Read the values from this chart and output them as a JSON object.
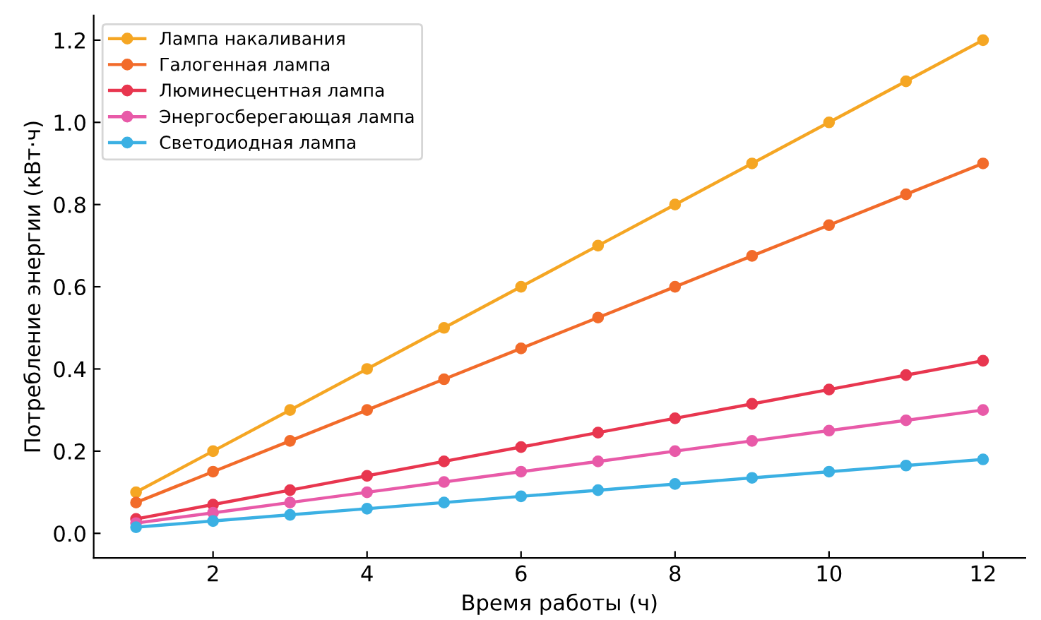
{
  "chart_data": {
    "type": "line",
    "xlabel": "Время работы (ч)",
    "ylabel": "Потребление энергии (кВт·ч)",
    "x": [
      1,
      2,
      3,
      4,
      5,
      6,
      7,
      8,
      9,
      10,
      11,
      12
    ],
    "series": [
      {
        "name": "Лампа накаливания",
        "color": "#f5a623",
        "values": [
          0.1,
          0.2,
          0.3,
          0.4,
          0.5,
          0.6,
          0.7,
          0.8,
          0.9,
          1.0,
          1.1,
          1.2
        ]
      },
      {
        "name": "Галогенная лампа",
        "color": "#f26b2a",
        "values": [
          0.075,
          0.15,
          0.225,
          0.3,
          0.375,
          0.45,
          0.525,
          0.6,
          0.675,
          0.75,
          0.825,
          0.9
        ]
      },
      {
        "name": "Люминесцентная лампа",
        "color": "#e8364f",
        "values": [
          0.035,
          0.07,
          0.105,
          0.14,
          0.175,
          0.21,
          0.245,
          0.28,
          0.315,
          0.35,
          0.385,
          0.42
        ]
      },
      {
        "name": "Энергосберегающая лампа",
        "color": "#e85aa8",
        "values": [
          0.025,
          0.05,
          0.075,
          0.1,
          0.125,
          0.15,
          0.175,
          0.2,
          0.225,
          0.25,
          0.275,
          0.3
        ]
      },
      {
        "name": "Светодиодная лампа",
        "color": "#3bb0e3",
        "values": [
          0.015,
          0.03,
          0.045,
          0.06,
          0.075,
          0.09,
          0.105,
          0.12,
          0.135,
          0.15,
          0.165,
          0.18
        ]
      }
    ],
    "xlim": [
      0.45,
      12.55
    ],
    "ylim": [
      -0.06,
      1.26
    ],
    "xticks": [
      2,
      4,
      6,
      8,
      10,
      12
    ],
    "yticks": [
      {
        "value": 0,
        "label": "0.0"
      },
      {
        "value": 0.2,
        "label": "0.2"
      },
      {
        "value": 0.4,
        "label": "0.4"
      },
      {
        "value": 0.6,
        "label": "0.6"
      },
      {
        "value": 0.8,
        "label": "0.8"
      },
      {
        "value": 1.0,
        "label": "1.0"
      },
      {
        "value": 1.2,
        "label": "1.2"
      }
    ],
    "legend": "top left",
    "marker": "circle",
    "line_style": "solid",
    "grid": false
  }
}
